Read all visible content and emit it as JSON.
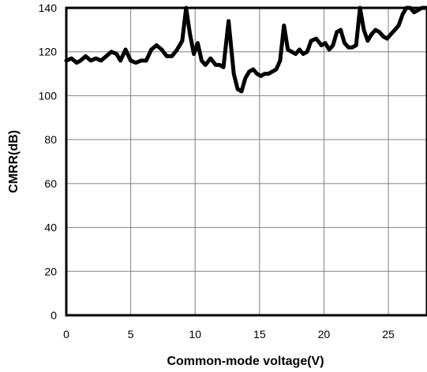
{
  "chart_data": {
    "type": "line",
    "title": "",
    "xlabel": "Common-mode voltage(V)",
    "ylabel": "CMRR(dB)",
    "xlim": [
      0,
      28
    ],
    "ylim": [
      0,
      140
    ],
    "x_ticks": [
      0,
      5,
      10,
      15,
      20,
      25
    ],
    "y_ticks": [
      0,
      20,
      40,
      60,
      80,
      100,
      120,
      140
    ],
    "grid": true,
    "legend": "none",
    "line_color": "#000000",
    "series": [
      {
        "x": [
          0,
          0.4,
          0.8,
          1.1,
          1.5,
          1.9,
          2.3,
          2.7,
          3.1,
          3.5,
          3.9,
          4.2,
          4.6,
          5.0,
          5.4,
          5.8,
          6.2,
          6.6,
          7.0,
          7.4,
          7.8,
          8.2,
          8.6,
          9.0,
          9.3,
          9.6,
          9.9,
          10.2,
          10.5,
          10.8,
          11.2,
          11.6,
          11.9,
          12.2,
          12.6,
          13.0,
          13.3,
          13.6,
          13.9,
          14.2,
          14.5,
          14.8,
          15.1,
          15.4,
          15.7,
          16.0,
          16.3,
          16.6,
          16.9,
          17.2,
          17.5,
          17.8,
          18.1,
          18.4,
          18.7,
          19.0,
          19.4,
          19.8,
          20.1,
          20.4,
          20.7,
          21.0,
          21.3,
          21.6,
          21.9,
          22.2,
          22.5,
          22.8,
          23.1,
          23.4,
          23.7,
          24.0,
          24.3,
          24.6,
          24.9,
          25.2,
          25.5,
          25.8,
          26.1,
          26.4,
          26.7,
          27.0,
          27.3,
          27.6,
          28.0
        ],
        "y": [
          116,
          117,
          115,
          116,
          118,
          116,
          117,
          116,
          118,
          120,
          119,
          116,
          121,
          116,
          115,
          116,
          116,
          121,
          123,
          121,
          118,
          118,
          121,
          125,
          141,
          128,
          119,
          124,
          116,
          114,
          117,
          114,
          114,
          113,
          134,
          110,
          103,
          102,
          108,
          111,
          112,
          110,
          109,
          110,
          110,
          111,
          112,
          116,
          132,
          121,
          120,
          119,
          121,
          119,
          120,
          125,
          126,
          123,
          124,
          121,
          123,
          129,
          130,
          124,
          122,
          122,
          123,
          142,
          130,
          125,
          128,
          130,
          129,
          127,
          126,
          128,
          130,
          132,
          137,
          141,
          140,
          138,
          139,
          140,
          141
        ]
      }
    ]
  }
}
